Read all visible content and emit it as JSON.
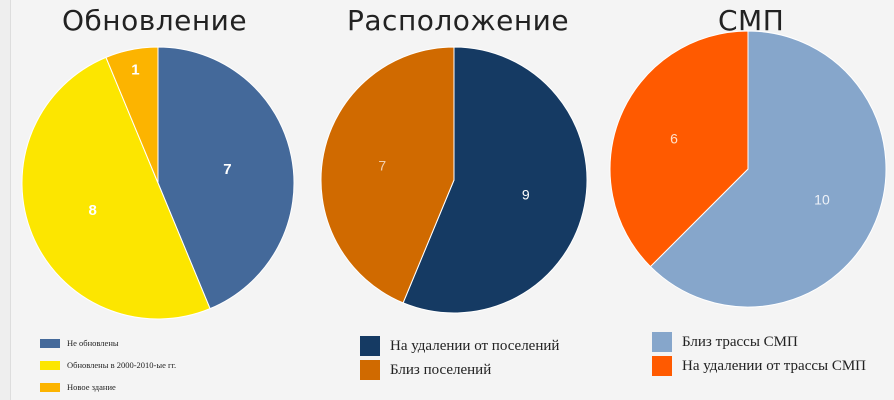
{
  "chart_data": [
    {
      "type": "pie",
      "title": "Обновление",
      "slices": [
        {
          "label": "Не обновлены",
          "value": 7,
          "color": "#44699a"
        },
        {
          "label": "Обновлены в 2000-2010-ые гг.",
          "value": 8,
          "color": "#fce600"
        },
        {
          "label": "Новое здание",
          "value": 1,
          "color": "#fcb400"
        }
      ],
      "legend_position": "bottom-left"
    },
    {
      "type": "pie",
      "title": "Расположение",
      "slices": [
        {
          "label": "На удалении от поселений",
          "value": 9,
          "color": "#153a63"
        },
        {
          "label": "Близ поселений",
          "value": 7,
          "color": "#d06a00"
        }
      ],
      "legend_position": "bottom"
    },
    {
      "type": "pie",
      "title": "СМП",
      "slices": [
        {
          "label": "Близ трассы СМП",
          "value": 10,
          "color": "#86a6cb"
        },
        {
          "label": "На удалении от трассы СМП",
          "value": 6,
          "color": "#ff5a00"
        }
      ],
      "legend_position": "bottom-right"
    }
  ]
}
